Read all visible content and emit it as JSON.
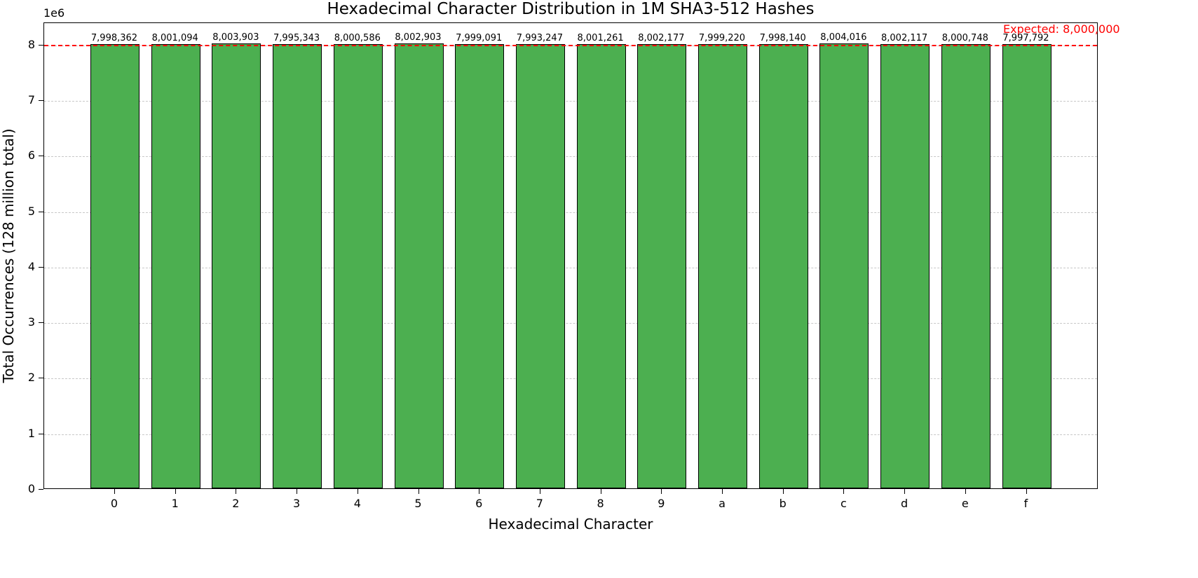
{
  "chart_data": {
    "type": "bar",
    "title": "Hexadecimal Character Distribution in 1M SHA3-512 Hashes",
    "xlabel": "Hexadecimal Character",
    "ylabel": "Total Occurrences (128 million total)",
    "y_offset_label": "1e6",
    "categories": [
      "0",
      "1",
      "2",
      "3",
      "4",
      "5",
      "6",
      "7",
      "8",
      "9",
      "a",
      "b",
      "c",
      "d",
      "e",
      "f"
    ],
    "values": [
      7998362,
      8001094,
      8003903,
      7995343,
      8000586,
      8002903,
      7999091,
      7993247,
      8001261,
      8002177,
      7999220,
      7998140,
      8004016,
      8002117,
      8000748,
      7997792
    ],
    "value_labels": [
      "7,998,362",
      "8,001,094",
      "8,003,903",
      "7,995,343",
      "8,000,586",
      "8,002,903",
      "7,999,091",
      "7,993,247",
      "8,001,261",
      "8,002,177",
      "7,999,220",
      "7,998,140",
      "8,004,016",
      "8,002,117",
      "8,000,748",
      "7,997,792"
    ],
    "yticks": [
      0,
      1,
      2,
      3,
      4,
      5,
      6,
      7,
      8
    ],
    "ytick_labels": [
      "0",
      "1",
      "2",
      "3",
      "4",
      "5",
      "6",
      "7",
      "8"
    ],
    "ylim": [
      0,
      8400000
    ],
    "grid": "y dashed",
    "bar_color": "#4caf50",
    "bar_edge_color": "#000000",
    "reference_line": {
      "value": 8000000,
      "label": "Expected: 8,000,000",
      "color": "#ff0000",
      "style": "dashed"
    },
    "legend": null
  }
}
